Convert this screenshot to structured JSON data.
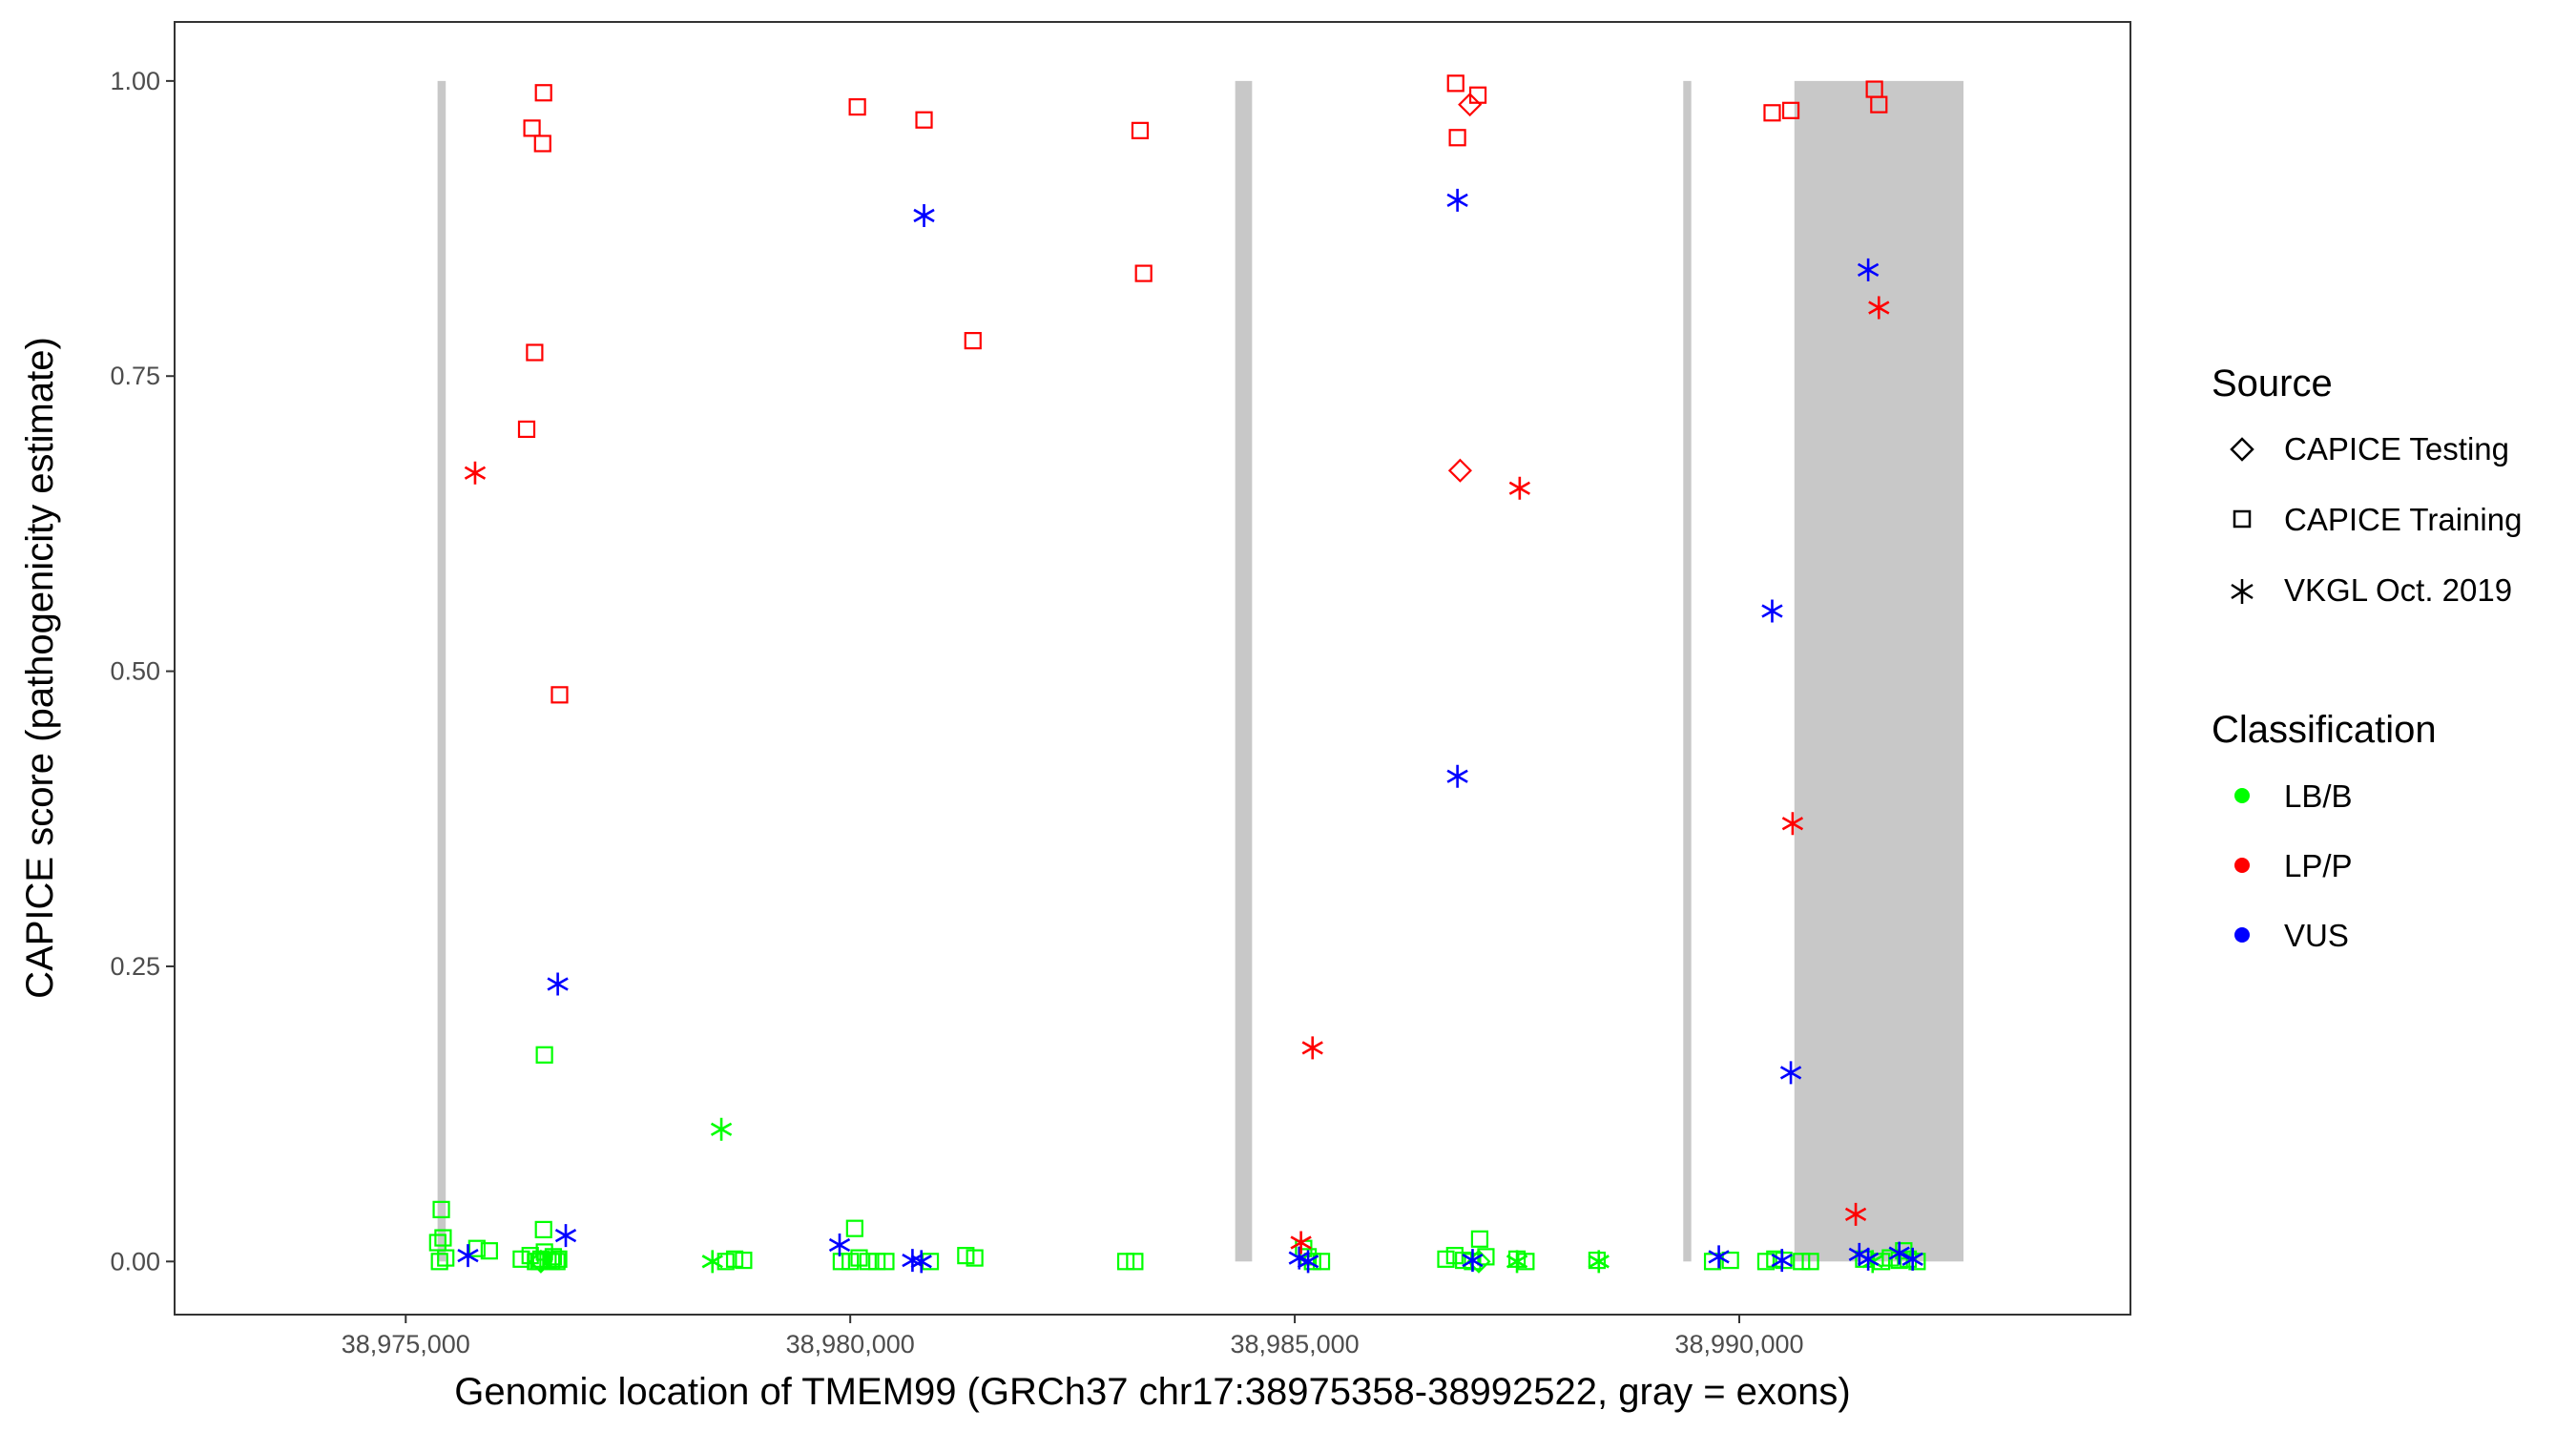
{
  "chart_data": {
    "type": "scatter",
    "title": "",
    "xlabel": "Genomic location of TMEM99 (GRCh37 chr17:38975358-38992522, gray = exons)",
    "ylabel": "CAPICE score (pathogenicity estimate)",
    "xlim": [
      38972400,
      38994400
    ],
    "ylim": [
      -0.045,
      1.05
    ],
    "x_ticks": [
      38975000,
      38980000,
      38985000,
      38990000
    ],
    "x_tick_labels": [
      "38,975,000",
      "38,980,000",
      "38,985,000",
      "38,990,000"
    ],
    "y_ticks": [
      0,
      0.25,
      0.5,
      0.75,
      1.0
    ],
    "y_tick_labels": [
      "0.00",
      "0.25",
      "0.50",
      "0.75",
      "1.00"
    ],
    "grid": false,
    "exons": [
      {
        "start": 38975358,
        "end": 38975450
      },
      {
        "start": 38984330,
        "end": 38984520
      },
      {
        "start": 38989370,
        "end": 38989460
      },
      {
        "start": 38990620,
        "end": 38992522
      }
    ],
    "legend": {
      "position": "right",
      "source_title": "Source",
      "source_items": [
        {
          "label": "CAPICE Testing",
          "shape": "diamond"
        },
        {
          "label": "CAPICE Training",
          "shape": "square"
        },
        {
          "label": "VKGL Oct. 2019",
          "shape": "asterisk"
        }
      ],
      "class_title": "Classification",
      "class_items": [
        {
          "label": "LB/B",
          "color": "#00ff00"
        },
        {
          "label": "LP/P",
          "color": "#ff0000"
        },
        {
          "label": "VUS",
          "color": "#0000ff"
        }
      ]
    },
    "series": [
      {
        "name": "CAPICE Training",
        "classification": "LP/P",
        "shape": "square",
        "color": "#ff0000",
        "x": [
          38976550,
          38976420,
          38976540,
          38976450,
          38976360,
          38976730,
          38980080,
          38980830,
          38981380,
          38983260,
          38983300,
          38986810,
          38986830,
          38987060,
          38990370,
          38990580,
          38991520,
          38991570
        ],
        "y": [
          0.99,
          0.96,
          0.947,
          0.77,
          0.705,
          0.48,
          0.978,
          0.967,
          0.78,
          0.958,
          0.837,
          0.998,
          0.952,
          0.988,
          0.973,
          0.975,
          0.993,
          0.98
        ]
      },
      {
        "name": "CAPICE Testing",
        "classification": "LP/P",
        "shape": "diamond",
        "color": "#ff0000",
        "x": [
          38986970,
          38986860
        ],
        "y": [
          0.98,
          0.67
        ]
      },
      {
        "name": "VKGL Oct. 2019",
        "classification": "LP/P",
        "shape": "asterisk",
        "color": "#ff0000",
        "x": [
          38975780,
          38985070,
          38985200,
          38987530,
          38990600,
          38991310,
          38991570
        ],
        "y": [
          0.668,
          0.016,
          0.181,
          0.655,
          0.371,
          0.04,
          0.808
        ]
      },
      {
        "name": "VKGL Oct. 2019",
        "classification": "VUS",
        "shape": "asterisk",
        "color": "#0000ff",
        "x": [
          38980830,
          38986830,
          38986830,
          38976710,
          38976800,
          38975700,
          38979880,
          38980700,
          38980800,
          38985050,
          38985150,
          38987000,
          38989770,
          38990370,
          38990580,
          38990480,
          38991450,
          38991350,
          38991450,
          38991800,
          38991950
        ],
        "y": [
          0.886,
          0.899,
          0.411,
          0.235,
          0.022,
          0.005,
          0.014,
          0.001,
          0.0,
          0.003,
          0.0,
          0.001,
          0.004,
          0.551,
          0.16,
          0.001,
          0.84,
          0.006,
          0.002,
          0.007,
          0.002
        ]
      },
      {
        "name": "VKGL Oct. 2019",
        "classification": "LB/B",
        "shape": "asterisk",
        "color": "#00ff00",
        "x": [
          38978550,
          38978450,
          38987500,
          38988420,
          38991500
        ],
        "y": [
          0.112,
          0.0,
          0.0,
          0.0,
          0.0
        ]
      },
      {
        "name": "CAPICE Training",
        "classification": "LB/B",
        "shape": "square",
        "color": "#00ff00",
        "x": [
          38975400,
          38975360,
          38975380,
          38975420,
          38975450,
          38975800,
          38975940,
          38976300,
          38976400,
          38976460,
          38976500,
          38976520,
          38976560,
          38976600,
          38976640,
          38976660,
          38976700,
          38976720,
          38976550,
          38978600,
          38978700,
          38978800,
          38979900,
          38980000,
          38980100,
          38980200,
          38980300,
          38980400,
          38980050,
          38980900,
          38981300,
          38981400,
          38983100,
          38983200,
          38985100,
          38985150,
          38985200,
          38985300,
          38986700,
          38986800,
          38986900,
          38987000,
          38987080,
          38987150,
          38987500,
          38987600,
          38988400,
          38989700,
          38989900,
          38990300,
          38990400,
          38990500,
          38990700,
          38990800,
          38991400,
          38991600,
          38991700,
          38991800,
          38991850,
          38991900,
          38992000,
          38976560
        ],
        "y": [
          0.044,
          0.016,
          0.0,
          0.02,
          0.003,
          0.011,
          0.009,
          0.002,
          0.005,
          0.0,
          0.0,
          0.002,
          0.008,
          0.001,
          0.0,
          0.004,
          0.0,
          0.002,
          0.027,
          0.0,
          0.002,
          0.001,
          0.0,
          0.0,
          0.003,
          0.0,
          0.0,
          0.0,
          0.028,
          0.0,
          0.005,
          0.003,
          0.0,
          0.0,
          0.011,
          0.004,
          0.0,
          0.0,
          0.002,
          0.005,
          0.001,
          0.0,
          0.019,
          0.004,
          0.002,
          0.0,
          0.001,
          0.0,
          0.001,
          0.0,
          0.002,
          0.001,
          0.0,
          0.0,
          0.002,
          0.0,
          0.003,
          0.001,
          0.009,
          0.002,
          0.0,
          0.175
        ]
      },
      {
        "name": "CAPICE Testing",
        "classification": "LB/B",
        "shape": "diamond",
        "color": "#00ff00",
        "x": [
          38976520,
          38987070
        ],
        "y": [
          0.0,
          0.0
        ]
      }
    ]
  }
}
